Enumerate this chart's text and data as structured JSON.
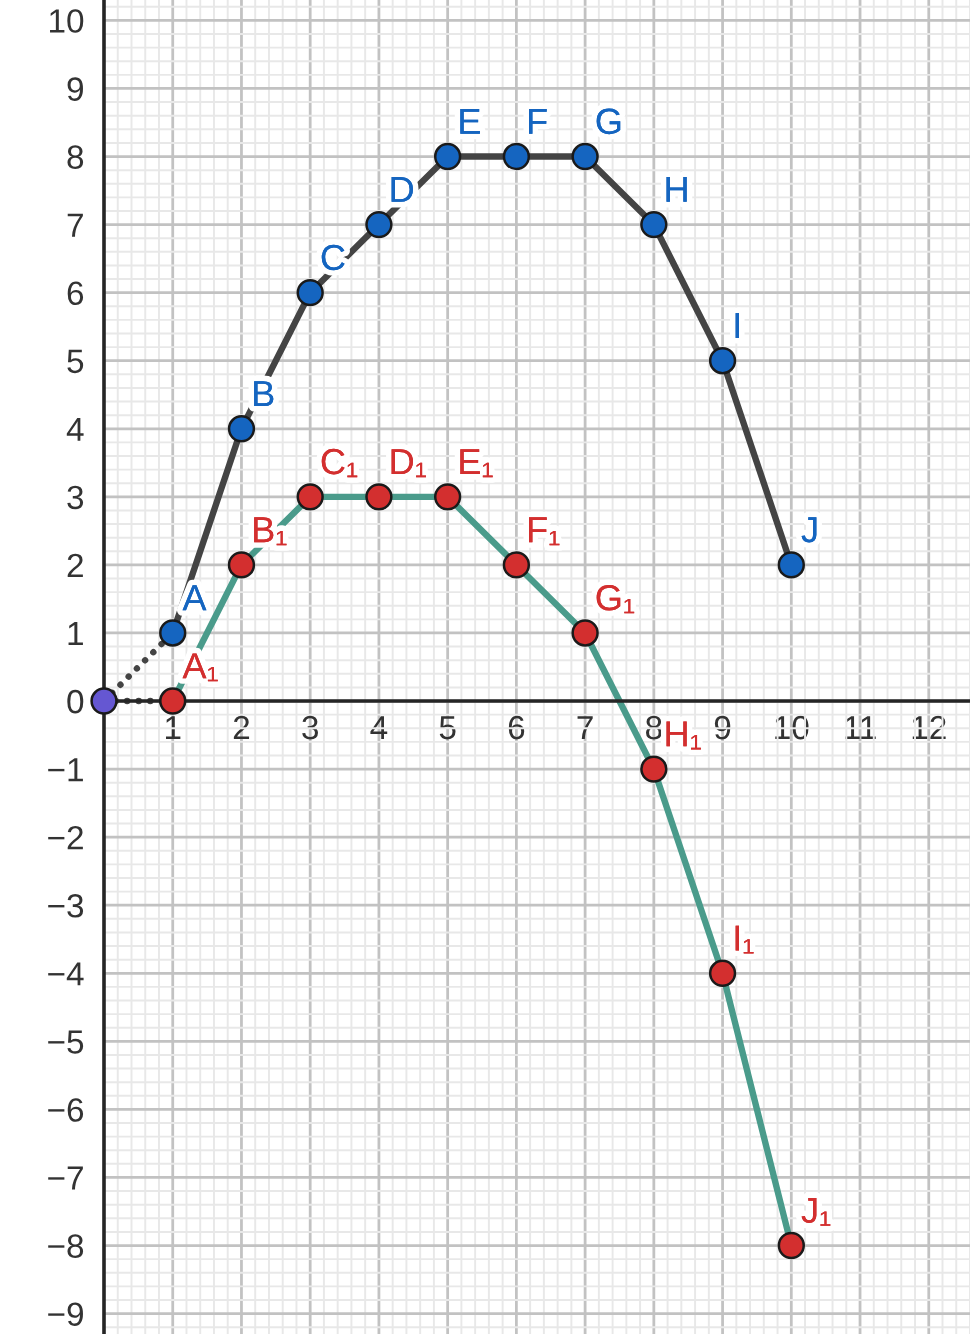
{
  "chart_data": {
    "type": "line",
    "xlim": [
      0,
      12.6
    ],
    "ylim": [
      -9.3,
      10.3
    ],
    "xticks": [
      1,
      2,
      3,
      4,
      5,
      6,
      7,
      8,
      9,
      10,
      11,
      12
    ],
    "yticks": [
      {
        "value": -9,
        "label": "−9"
      },
      {
        "value": -8,
        "label": "−8"
      },
      {
        "value": -7,
        "label": "−7"
      },
      {
        "value": -6,
        "label": "−6"
      },
      {
        "value": -5,
        "label": "−5"
      },
      {
        "value": -4,
        "label": "−4"
      },
      {
        "value": -3,
        "label": "−3"
      },
      {
        "value": -2,
        "label": "−2"
      },
      {
        "value": -1,
        "label": "−1"
      },
      0,
      1,
      2,
      3,
      4,
      5,
      6,
      7,
      8,
      9,
      10
    ],
    "grid": true,
    "series": [
      {
        "x": [
          0,
          1
        ],
        "values": [
          0,
          1
        ],
        "color": "#444444",
        "line_style": "dotted",
        "marker": "none"
      },
      {
        "x": [
          0,
          1
        ],
        "values": [
          0,
          0
        ],
        "color": "#444444",
        "line_style": "dotted",
        "marker": "none"
      },
      {
        "x": [
          1,
          2,
          3,
          4,
          5,
          6,
          7,
          8,
          9,
          10
        ],
        "values": [
          1,
          4,
          6,
          7,
          8,
          8,
          8,
          7,
          5,
          2
        ],
        "color": "#444444",
        "line_style": "solid",
        "marker": "circle",
        "colors": [
          "#1565c0",
          "#1565c0",
          "#1565c0",
          "#1565c0",
          "#1565c0",
          "#1565c0",
          "#1565c0",
          "#1565c0",
          "#1565c0",
          "#1565c0"
        ]
      },
      {
        "x": [
          1,
          2,
          3,
          4,
          5,
          6,
          7,
          8,
          9,
          10
        ],
        "values": [
          0,
          2,
          3,
          3,
          3,
          2,
          1,
          -1,
          -4,
          -8
        ],
        "color": "#4a9b8b",
        "line_style": "solid",
        "marker": "circle",
        "colors": [
          "#d32f2f",
          "#d32f2f",
          "#d32f2f",
          "#d32f2f",
          "#d32f2f",
          "#d32f2f",
          "#d32f2f",
          "#d32f2f",
          "#d32f2f",
          "#d32f2f"
        ]
      },
      {
        "type": "scatter",
        "x": [
          0
        ],
        "values": [
          0
        ],
        "color": "#6557d2",
        "marker": "circle"
      }
    ],
    "annotations": [
      {
        "text": "A",
        "x": 1,
        "y": 1
      },
      {
        "text": "B",
        "x": 2,
        "y": 4
      },
      {
        "text": "C",
        "x": 3,
        "y": 6
      },
      {
        "text": "D",
        "x": 4,
        "y": 7
      },
      {
        "text": "E",
        "x": 5,
        "y": 8
      },
      {
        "text": "F",
        "x": 6,
        "y": 8
      },
      {
        "text": "G",
        "x": 7,
        "y": 8
      },
      {
        "text": "H",
        "x": 8,
        "y": 7
      },
      {
        "text": "I",
        "x": 9,
        "y": 5
      },
      {
        "text": "J",
        "x": 10,
        "y": 2
      },
      {
        "text": "A₁",
        "x": 1,
        "y": 0
      },
      {
        "text": "B₁",
        "x": 2,
        "y": 2
      },
      {
        "text": "C₁",
        "x": 3,
        "y": 3
      },
      {
        "text": "D₁",
        "x": 4,
        "y": 3
      },
      {
        "text": "E₁",
        "x": 5,
        "y": 3
      },
      {
        "text": "F₁",
        "x": 6,
        "y": 2
      },
      {
        "text": "G₁",
        "x": 7,
        "y": 1
      },
      {
        "text": "H₁",
        "x": 8,
        "y": -1
      },
      {
        "text": "I₁",
        "x": 9,
        "y": -4
      },
      {
        "text": "J₁",
        "x": 10,
        "y": -8
      }
    ]
  }
}
